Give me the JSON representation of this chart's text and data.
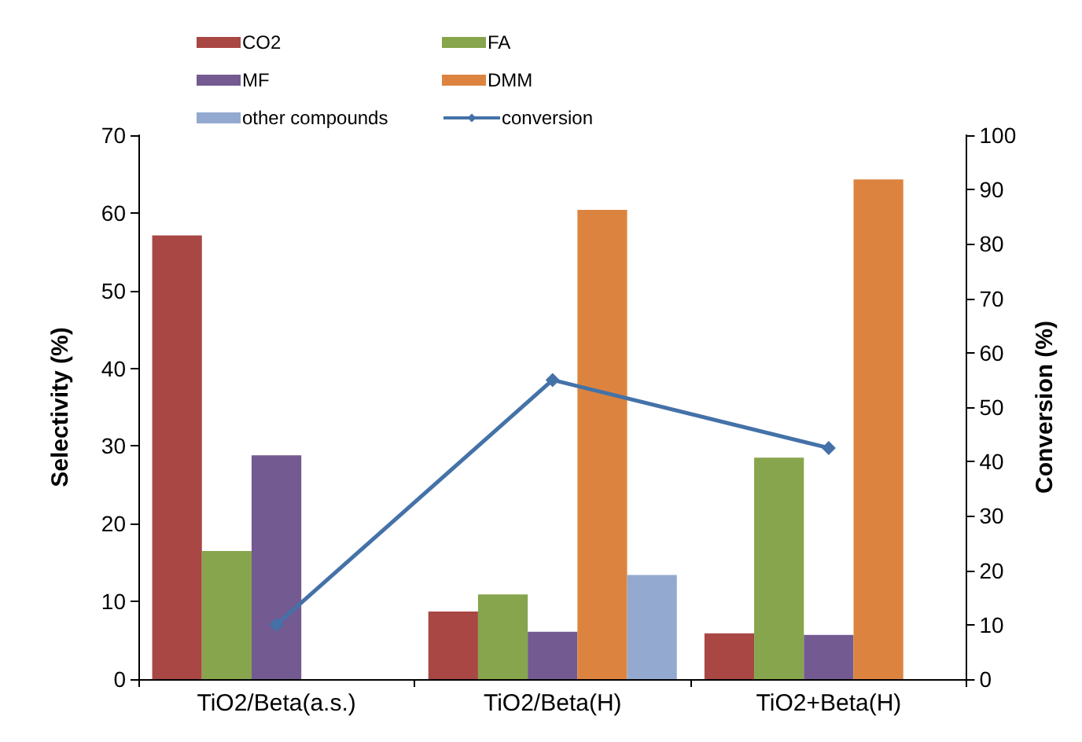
{
  "chart_data": {
    "type": "bar",
    "categories": [
      "TiO2/Beta(a.s.)",
      "TiO2/Beta(H)",
      "TiO2+Beta(H)"
    ],
    "series": [
      {
        "name": "CO2",
        "color": "#a84744",
        "values": [
          57.1,
          8.7,
          5.9
        ]
      },
      {
        "name": "FA",
        "color": "#86a54c",
        "values": [
          16.5,
          10.9,
          28.5
        ]
      },
      {
        "name": "MF",
        "color": "#735a91",
        "values": [
          28.8,
          6.1,
          5.7
        ]
      },
      {
        "name": "DMM",
        "color": "#dc843f",
        "values": [
          0,
          60.4,
          64.3
        ]
      },
      {
        "name": "other compounds",
        "color": "#93a9cf",
        "values": [
          0,
          13.4,
          0
        ]
      },
      {
        "name": "conversion",
        "type": "line",
        "axis": "y2",
        "color": "#4472a8",
        "marker": "diamond",
        "values": [
          10,
          55,
          42.5
        ]
      }
    ],
    "ylabel": "Selectivity (%)",
    "y2label": "Conversion (%)",
    "ylim": [
      0,
      70
    ],
    "yticks": [
      0,
      10,
      20,
      30,
      40,
      50,
      60,
      70
    ],
    "y2lim": [
      0,
      100
    ],
    "y2ticks": [
      0,
      10,
      20,
      30,
      40,
      50,
      60,
      70,
      80,
      90,
      100
    ],
    "grid": false,
    "legend": "top left"
  }
}
